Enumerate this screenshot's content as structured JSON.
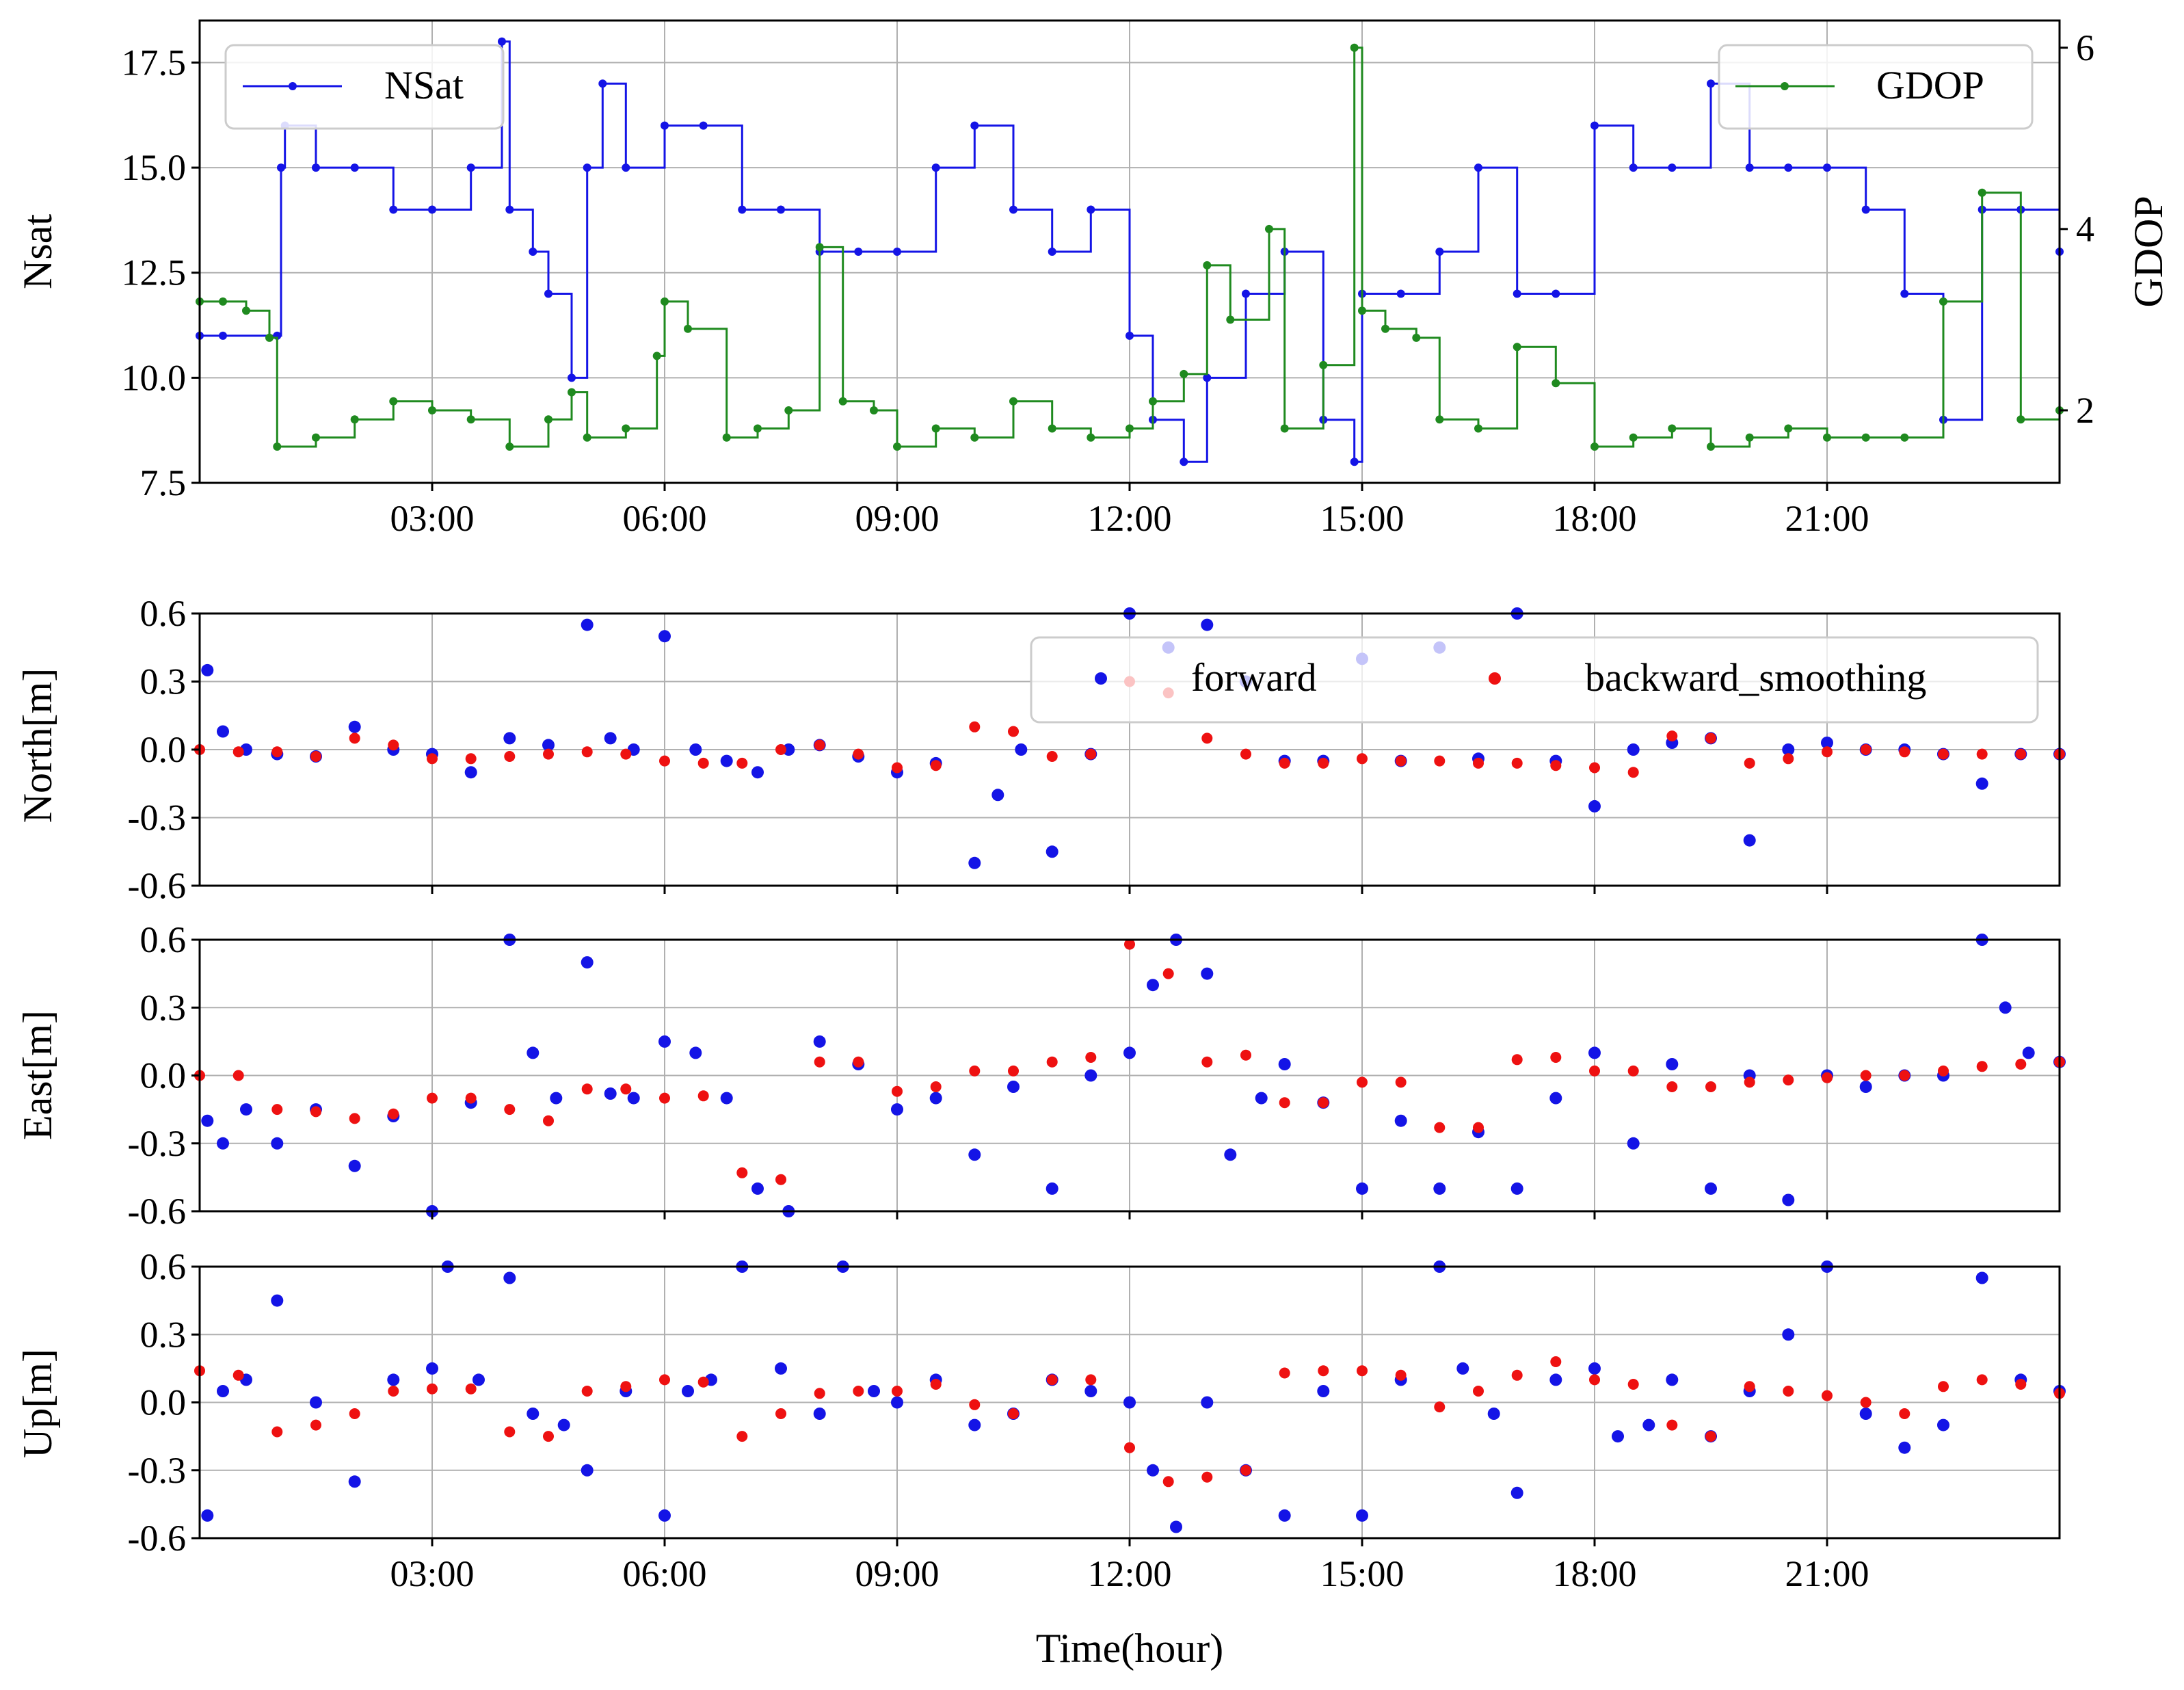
{
  "chart_data": [
    {
      "type": "line",
      "panel": "nsat-gdop",
      "ylabel": "Nsat",
      "ylabel_right": "GDOP",
      "ylim": [
        7.5,
        18.5
      ],
      "ylim_right": [
        1.2,
        6.3
      ],
      "yticks": [
        "7.5",
        "10.0",
        "12.5",
        "15.0",
        "17.5"
      ],
      "yticks_right": [
        "2",
        "4",
        "6"
      ],
      "xlim": [
        0,
        24
      ],
      "xticks": [
        "03:00",
        "06:00",
        "09:00",
        "12:00",
        "15:00",
        "18:00",
        "21:00"
      ],
      "grid": true,
      "legend_left": "NSat",
      "legend_right": "GDOP",
      "legend_left_position": "top-left",
      "legend_right_position": "top-right",
      "colors": {
        "nsat": "#1414e6",
        "gdop": "#1f8a1f"
      },
      "series": [
        {
          "name": "NSat",
          "axis": "left",
          "x": [
            0,
            0.3,
            1.0,
            1.05,
            1.1,
            1.5,
            2.0,
            2.5,
            3.0,
            3.5,
            3.9,
            4.0,
            4.3,
            4.5,
            4.8,
            5.0,
            5.2,
            5.5,
            6.0,
            6.5,
            7.0,
            7.5,
            8.0,
            8.5,
            9.0,
            9.5,
            10.0,
            10.5,
            11.0,
            11.5,
            12.0,
            12.3,
            12.7,
            13.0,
            13.5,
            14.0,
            14.5,
            14.9,
            15.0,
            15.5,
            16.0,
            16.5,
            17.0,
            17.5,
            18.0,
            18.5,
            19.0,
            19.5,
            20.0,
            20.5,
            21.0,
            21.5,
            22.0,
            22.5,
            23.0,
            23.5,
            24.0
          ],
          "values": [
            11,
            11,
            11,
            15,
            16,
            15,
            15,
            14,
            14,
            15,
            18,
            14,
            13,
            12,
            10,
            15,
            17,
            15,
            16,
            16,
            14,
            14,
            13,
            13,
            13,
            15,
            16,
            14,
            13,
            14,
            11,
            9,
            8,
            10,
            12,
            13,
            9,
            8,
            12,
            12,
            13,
            15,
            12,
            12,
            16,
            15,
            15,
            17,
            15,
            15,
            15,
            14,
            12,
            9,
            14,
            14,
            13
          ]
        },
        {
          "name": "GDOP",
          "axis": "right",
          "x": [
            0,
            0.3,
            0.6,
            0.9,
            1.0,
            1.5,
            2.0,
            2.5,
            3.0,
            3.5,
            4.0,
            4.5,
            4.8,
            5.0,
            5.5,
            5.9,
            6.0,
            6.3,
            6.8,
            7.2,
            7.6,
            8.0,
            8.3,
            8.7,
            9.0,
            9.5,
            10.0,
            10.5,
            11.0,
            11.5,
            12.0,
            12.3,
            12.7,
            13.0,
            13.3,
            13.8,
            14.0,
            14.5,
            14.9,
            15.0,
            15.3,
            15.7,
            16.0,
            16.5,
            17.0,
            17.5,
            18.0,
            18.5,
            19.0,
            19.5,
            20.0,
            20.5,
            21.0,
            21.5,
            22.0,
            22.5,
            23.0,
            23.5,
            24.0
          ],
          "values": [
            3.2,
            3.2,
            3.1,
            2.8,
            1.6,
            1.7,
            1.9,
            2.1,
            2.0,
            1.9,
            1.6,
            1.9,
            2.2,
            1.7,
            1.8,
            2.6,
            3.2,
            2.9,
            1.7,
            1.8,
            2.0,
            3.8,
            2.1,
            2.0,
            1.6,
            1.8,
            1.7,
            2.1,
            1.8,
            1.7,
            1.8,
            2.1,
            2.4,
            3.6,
            3.0,
            4.0,
            1.8,
            2.5,
            6.0,
            3.1,
            2.9,
            2.8,
            1.9,
            1.8,
            2.7,
            2.3,
            1.6,
            1.7,
            1.8,
            1.6,
            1.7,
            1.8,
            1.7,
            1.7,
            1.7,
            3.2,
            4.4,
            1.9,
            2.0
          ]
        }
      ]
    },
    {
      "type": "scatter",
      "panel": "north",
      "ylabel": "North[m]",
      "ylim": [
        -0.6,
        0.6
      ],
      "yticks": [
        "0.6",
        "0.3",
        "0.0",
        "-0.3",
        "-0.6"
      ],
      "xlim": [
        0,
        24
      ],
      "xticks": [],
      "grid": true,
      "legend": [
        "forward",
        "backward_smoothing"
      ],
      "legend_position": "top-right",
      "colors": {
        "forward": "#1414e6",
        "backward_smoothing": "#ee1111"
      },
      "series": [
        {
          "name": "forward",
          "x": [
            0.1,
            0.3,
            0.6,
            1.0,
            1.5,
            2.0,
            2.5,
            3.0,
            3.5,
            4.0,
            4.5,
            5.0,
            5.3,
            5.6,
            6.0,
            6.4,
            6.8,
            7.2,
            7.6,
            8.0,
            8.5,
            9.0,
            9.5,
            10.0,
            10.3,
            10.6,
            11.0,
            11.5,
            12.0,
            12.5,
            13.0,
            13.5,
            14.0,
            14.5,
            15.0,
            15.5,
            16.0,
            16.5,
            17.0,
            17.5,
            18.0,
            18.5,
            19.0,
            19.5,
            20.0,
            20.5,
            21.0,
            21.5,
            22.0,
            22.5,
            23.0,
            23.5,
            24.0
          ],
          "values": [
            0.35,
            0.08,
            0.0,
            -0.02,
            -0.03,
            0.1,
            0.0,
            -0.02,
            -0.1,
            0.05,
            0.02,
            0.55,
            0.05,
            0.0,
            0.5,
            0.0,
            -0.05,
            -0.1,
            0.0,
            0.02,
            -0.03,
            -0.1,
            -0.06,
            -0.5,
            -0.2,
            0.0,
            -0.45,
            -0.02,
            0.6,
            0.45,
            0.55,
            0.3,
            -0.05,
            -0.05,
            0.4,
            -0.05,
            0.45,
            -0.04,
            0.6,
            -0.05,
            -0.25,
            0.0,
            0.03,
            0.05,
            -0.4,
            0.0,
            0.03,
            0.0,
            0.0,
            -0.02,
            -0.15,
            -0.02,
            -0.02
          ]
        },
        {
          "name": "backward_smoothing",
          "x": [
            0,
            0.5,
            1.0,
            1.5,
            2.0,
            2.5,
            3.0,
            3.5,
            4.0,
            4.5,
            5.0,
            5.5,
            6.0,
            6.5,
            7.0,
            7.5,
            8.0,
            8.5,
            9.0,
            9.5,
            10.0,
            10.5,
            11.0,
            11.5,
            12.0,
            12.5,
            13.0,
            13.5,
            14.0,
            14.5,
            15.0,
            15.5,
            16.0,
            16.5,
            17.0,
            17.5,
            18.0,
            18.5,
            19.0,
            19.5,
            20.0,
            20.5,
            21.0,
            21.5,
            22.0,
            22.5,
            23.0,
            23.5,
            24.0
          ],
          "values": [
            0.0,
            -0.01,
            -0.01,
            -0.03,
            0.05,
            0.02,
            -0.04,
            -0.04,
            -0.03,
            -0.02,
            -0.01,
            -0.02,
            -0.05,
            -0.06,
            -0.06,
            0.0,
            0.02,
            -0.02,
            -0.08,
            -0.07,
            0.1,
            0.08,
            -0.03,
            -0.02,
            0.3,
            0.25,
            0.05,
            -0.02,
            -0.06,
            -0.06,
            -0.04,
            -0.05,
            -0.05,
            -0.06,
            -0.06,
            -0.07,
            -0.08,
            -0.1,
            0.06,
            0.05,
            -0.06,
            -0.04,
            -0.01,
            0.0,
            -0.01,
            -0.02,
            -0.02,
            -0.02,
            -0.02
          ]
        }
      ]
    },
    {
      "type": "scatter",
      "panel": "east",
      "ylabel": "East[m]",
      "ylim": [
        -0.6,
        0.6
      ],
      "yticks": [
        "0.6",
        "0.3",
        "0.0",
        "-0.3",
        "-0.6"
      ],
      "xlim": [
        0,
        24
      ],
      "xticks": [],
      "grid": true,
      "series": [
        {
          "name": "forward",
          "x": [
            0.1,
            0.3,
            0.6,
            1.0,
            1.5,
            2.0,
            2.5,
            3.0,
            3.5,
            4.0,
            4.3,
            4.6,
            5.0,
            5.3,
            5.6,
            6.0,
            6.4,
            6.8,
            7.2,
            7.6,
            8.0,
            8.5,
            9.0,
            9.5,
            10.0,
            10.5,
            11.0,
            11.5,
            12.0,
            12.3,
            12.6,
            13.0,
            13.3,
            13.7,
            14.0,
            14.5,
            15.0,
            15.5,
            16.0,
            16.5,
            17.0,
            17.5,
            18.0,
            18.5,
            19.0,
            19.5,
            20.0,
            20.5,
            21.0,
            21.5,
            22.0,
            22.5,
            23.0,
            23.3,
            23.6,
            24.0
          ],
          "values": [
            -0.2,
            -0.3,
            -0.15,
            -0.3,
            -0.15,
            -0.4,
            -0.18,
            -0.6,
            -0.12,
            0.6,
            0.1,
            -0.1,
            0.5,
            -0.08,
            -0.1,
            0.15,
            0.1,
            -0.1,
            -0.5,
            -0.6,
            0.15,
            0.05,
            -0.15,
            -0.1,
            -0.35,
            -0.05,
            -0.5,
            0.0,
            0.1,
            0.4,
            0.6,
            0.45,
            -0.35,
            -0.1,
            0.05,
            -0.12,
            -0.5,
            -0.2,
            -0.5,
            -0.25,
            -0.5,
            -0.1,
            0.1,
            -0.3,
            0.05,
            -0.5,
            0.0,
            -0.55,
            0.0,
            -0.05,
            0.0,
            0.0,
            0.6,
            0.3,
            0.1,
            0.06
          ]
        },
        {
          "name": "backward_smoothing",
          "x": [
            0,
            0.5,
            1.0,
            1.5,
            2.0,
            2.5,
            3.0,
            3.5,
            4.0,
            4.5,
            5.0,
            5.5,
            6.0,
            6.5,
            7.0,
            7.5,
            8.0,
            8.5,
            9.0,
            9.5,
            10.0,
            10.5,
            11.0,
            11.5,
            12.0,
            12.5,
            13.0,
            13.5,
            14.0,
            14.5,
            15.0,
            15.5,
            16.0,
            16.5,
            17.0,
            17.5,
            18.0,
            18.5,
            19.0,
            19.5,
            20.0,
            20.5,
            21.0,
            21.5,
            22.0,
            22.5,
            23.0,
            23.5,
            24.0
          ],
          "values": [
            0.0,
            0.0,
            -0.15,
            -0.16,
            -0.19,
            -0.17,
            -0.1,
            -0.1,
            -0.15,
            -0.2,
            -0.06,
            -0.06,
            -0.1,
            -0.09,
            -0.43,
            -0.46,
            0.06,
            0.06,
            -0.07,
            -0.05,
            0.02,
            0.02,
            0.06,
            0.08,
            0.58,
            0.45,
            0.06,
            0.09,
            -0.12,
            -0.12,
            -0.03,
            -0.03,
            -0.23,
            -0.23,
            0.07,
            0.08,
            0.02,
            0.02,
            -0.05,
            -0.05,
            -0.03,
            -0.02,
            -0.01,
            0.0,
            0.0,
            0.02,
            0.04,
            0.05,
            0.06
          ]
        }
      ]
    },
    {
      "type": "scatter",
      "panel": "up",
      "ylabel": "Up[m]",
      "xlabel": "Time(hour)",
      "ylim": [
        -0.6,
        0.6
      ],
      "yticks": [
        "0.6",
        "0.3",
        "0.0",
        "-0.3",
        "-0.6"
      ],
      "xlim": [
        0,
        24
      ],
      "xticks": [
        "03:00",
        "06:00",
        "09:00",
        "12:00",
        "15:00",
        "18:00",
        "21:00"
      ],
      "grid": true,
      "series": [
        {
          "name": "forward",
          "x": [
            0.1,
            0.3,
            0.6,
            1.0,
            1.5,
            2.0,
            2.5,
            3.0,
            3.2,
            3.6,
            4.0,
            4.3,
            4.7,
            5.0,
            5.5,
            6.0,
            6.3,
            6.6,
            7.0,
            7.5,
            8.0,
            8.3,
            8.7,
            9.0,
            9.5,
            10.0,
            10.5,
            11.0,
            11.5,
            12.0,
            12.3,
            12.6,
            13.0,
            13.5,
            14.0,
            14.5,
            15.0,
            15.5,
            16.0,
            16.3,
            16.7,
            17.0,
            17.5,
            18.0,
            18.3,
            18.7,
            19.0,
            19.5,
            20.0,
            20.5,
            21.0,
            21.5,
            22.0,
            22.5,
            23.0,
            23.5,
            24.0
          ],
          "values": [
            -0.5,
            0.05,
            0.1,
            0.45,
            0.0,
            -0.35,
            0.1,
            0.15,
            0.6,
            0.1,
            0.55,
            -0.05,
            -0.1,
            -0.3,
            0.05,
            -0.5,
            0.05,
            0.1,
            0.6,
            0.15,
            -0.05,
            0.6,
            0.05,
            0.0,
            0.1,
            -0.1,
            -0.05,
            0.1,
            0.05,
            0.0,
            -0.3,
            -0.55,
            0.0,
            -0.3,
            -0.5,
            0.05,
            -0.5,
            0.1,
            0.6,
            0.15,
            -0.05,
            -0.4,
            0.1,
            0.15,
            -0.15,
            -0.1,
            0.1,
            -0.15,
            0.05,
            0.3,
            0.6,
            -0.05,
            -0.2,
            -0.1,
            0.55,
            0.1,
            0.05
          ]
        },
        {
          "name": "backward_smoothing",
          "x": [
            0,
            0.5,
            1.0,
            1.5,
            2.0,
            2.5,
            3.0,
            3.5,
            4.0,
            4.5,
            5.0,
            5.5,
            6.0,
            6.5,
            7.0,
            7.5,
            8.0,
            8.5,
            9.0,
            9.5,
            10.0,
            10.5,
            11.0,
            11.5,
            12.0,
            12.5,
            13.0,
            13.5,
            14.0,
            14.5,
            15.0,
            15.5,
            16.0,
            16.5,
            17.0,
            17.5,
            18.0,
            18.5,
            19.0,
            19.5,
            20.0,
            20.5,
            21.0,
            21.5,
            22.0,
            22.5,
            23.0,
            23.5,
            24.0
          ],
          "values": [
            0.14,
            0.12,
            -0.13,
            -0.1,
            -0.05,
            0.05,
            0.06,
            0.06,
            -0.13,
            -0.15,
            0.05,
            0.07,
            0.1,
            0.09,
            -0.15,
            -0.05,
            0.04,
            0.05,
            0.05,
            0.08,
            -0.01,
            -0.05,
            0.1,
            0.1,
            -0.2,
            -0.35,
            -0.33,
            -0.3,
            0.13,
            0.14,
            0.14,
            0.12,
            -0.02,
            0.05,
            0.12,
            0.18,
            0.1,
            0.08,
            -0.1,
            -0.15,
            0.07,
            0.05,
            0.03,
            0.0,
            -0.05,
            0.07,
            0.1,
            0.08,
            0.04
          ]
        }
      ]
    }
  ]
}
